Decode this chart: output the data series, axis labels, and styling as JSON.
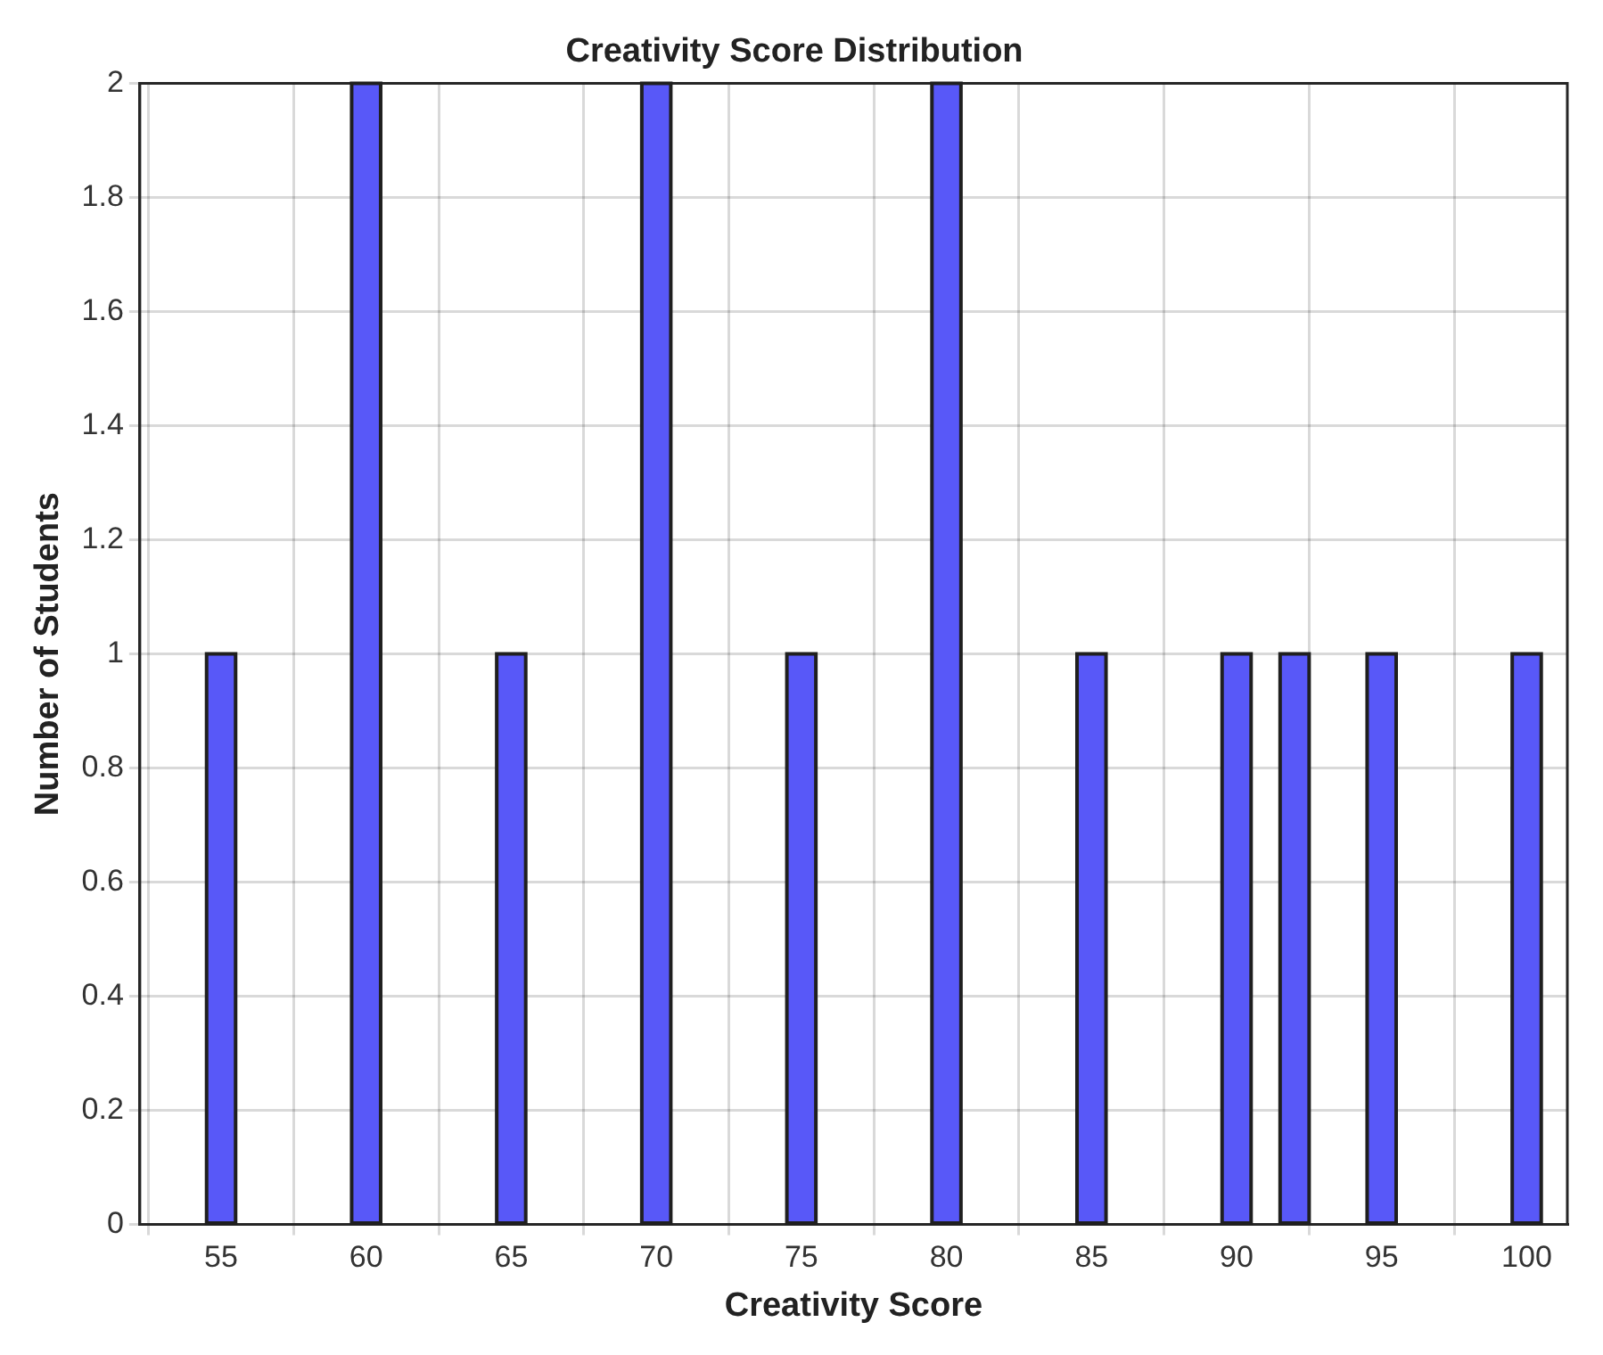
{
  "chart_data": {
    "type": "histogram",
    "title": "Creativity Score Distribution",
    "xlabel": "Creativity Score",
    "ylabel": "Number of Students",
    "bins": [
      54.5,
      55.5,
      56.5,
      57.5,
      58.5,
      59.5,
      60.5,
      61.5,
      62.5,
      63.5,
      64.5,
      65.5,
      66.5,
      67.5,
      68.5,
      69.5,
      70.5,
      71.5,
      72.5,
      73.5,
      74.5,
      75.5,
      76.5,
      77.5,
      78.5,
      79.5,
      80.5,
      81.5,
      82.5,
      83.5,
      84.5,
      85.5,
      86.5,
      87.5,
      88.5,
      89.5,
      90.5,
      91.5,
      92.5,
      93.5,
      94.5,
      95.5,
      96.5,
      97.5,
      98.5,
      99.5,
      100.5
    ],
    "values": [
      1,
      0,
      0,
      0,
      0,
      2,
      0,
      0,
      0,
      0,
      1,
      0,
      0,
      0,
      0,
      2,
      0,
      0,
      0,
      0,
      1,
      0,
      0,
      0,
      0,
      2,
      0,
      0,
      0,
      0,
      1,
      0,
      0,
      0,
      0,
      1,
      0,
      1,
      0,
      0,
      1,
      0,
      0,
      0,
      0,
      1
    ],
    "color": "#5858f8",
    "xlim": [
      52.2,
      101.4
    ],
    "xticks": [
      55,
      60,
      65,
      70,
      75,
      80,
      85,
      90,
      95,
      100
    ],
    "ylim": [
      0,
      2
    ],
    "yticks": [
      0,
      0.2,
      0.4,
      0.6,
      0.8,
      1,
      1.2,
      1.4,
      1.6,
      1.8,
      2
    ],
    "grid": true
  }
}
